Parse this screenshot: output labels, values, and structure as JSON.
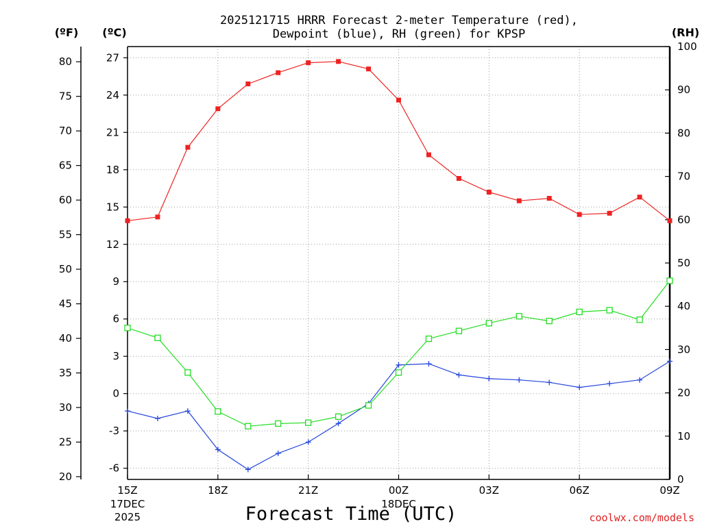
{
  "chart_data": {
    "type": "line",
    "title_line1": "2025121715 HRRR Forecast 2-meter Temperature (red),",
    "title_line2": "Dewpoint (blue), RH (green) for KPSP",
    "xlabel": "Forecast Time (UTC)",
    "credit": "coolwx.com/models",
    "axis_units": {
      "fahrenheit": "(ºF)",
      "celsius": "(ºC)",
      "rh": "(RH)"
    },
    "x_hours": [
      0,
      1,
      2,
      3,
      4,
      5,
      6,
      7,
      8,
      9,
      10,
      11,
      12,
      13,
      14,
      15,
      16,
      17,
      18
    ],
    "x_ticks": [
      {
        "hour": 0,
        "label": "15Z",
        "sub1": "17DEC",
        "sub2": "2025"
      },
      {
        "hour": 3,
        "label": "18Z",
        "sub1": "",
        "sub2": ""
      },
      {
        "hour": 6,
        "label": "21Z",
        "sub1": "",
        "sub2": ""
      },
      {
        "hour": 9,
        "label": "00Z",
        "sub1": "18DEC",
        "sub2": ""
      },
      {
        "hour": 12,
        "label": "03Z",
        "sub1": "",
        "sub2": ""
      },
      {
        "hour": 15,
        "label": "06Z",
        "sub1": "",
        "sub2": ""
      },
      {
        "hour": 18,
        "label": "09Z",
        "sub1": "",
        "sub2": ""
      }
    ],
    "ylim_c": [
      -6.9,
      27.9
    ],
    "ylim_rh": [
      0,
      100
    ],
    "ylim_f": [
      19.6,
      82.2
    ],
    "c_ticks": [
      "-6",
      "-3",
      "0",
      "3",
      "6",
      "9",
      "12",
      "15",
      "18",
      "21",
      "24",
      "27"
    ],
    "f_ticks": [
      "20",
      "25",
      "30",
      "35",
      "40",
      "45",
      "50",
      "55",
      "60",
      "65",
      "70",
      "75",
      "80"
    ],
    "rh_ticks": [
      "0",
      "10",
      "20",
      "30",
      "40",
      "50",
      "60",
      "70",
      "80",
      "90",
      "100"
    ],
    "series": [
      {
        "name": "Temperature",
        "unit": "C",
        "color": "#ee2222",
        "marker": "filled-square",
        "values": [
          13.9,
          14.2,
          19.8,
          22.9,
          24.9,
          25.8,
          26.6,
          26.7,
          26.1,
          23.6,
          19.2,
          17.3,
          16.2,
          15.5,
          15.7,
          14.4,
          14.5,
          15.8,
          13.9
        ]
      },
      {
        "name": "Dewpoint",
        "unit": "C",
        "color": "#2244dd",
        "marker": "plus",
        "values": [
          -1.4,
          -2.0,
          -1.4,
          -4.5,
          -6.1,
          -4.8,
          -3.9,
          -2.4,
          -0.8,
          2.3,
          2.4,
          1.5,
          1.2,
          1.1,
          0.9,
          0.5,
          0.8,
          1.1,
          2.6
        ]
      },
      {
        "name": "RH",
        "unit": "%",
        "color": "#22dd22",
        "marker": "open-square",
        "values": [
          35,
          32.7,
          24.7,
          15.7,
          12.3,
          12.9,
          13.1,
          14.5,
          17.1,
          24.7,
          32.5,
          34.3,
          36.1,
          37.7,
          36.6,
          38.7,
          39.1,
          36.9,
          45.9
        ]
      }
    ]
  }
}
